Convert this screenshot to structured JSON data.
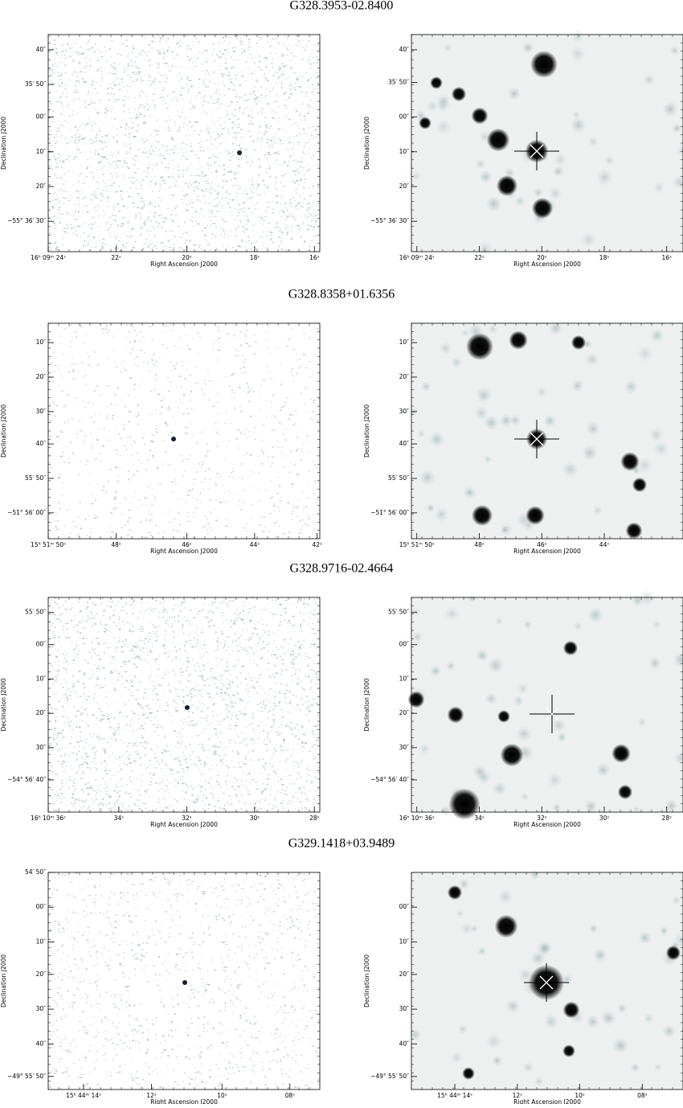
{
  "panels": [
    {
      "title": "G328.3953-02.8400",
      "left": {
        "yticks": [
          "40″",
          "35′ 50″",
          "00″",
          "10″",
          "20″",
          "−55° 36′ 30″"
        ],
        "xticks": [
          "16ʰ 09ᵐ 24ˢ",
          "22ˢ",
          "20ˢ",
          "18ˢ",
          "16ˢ"
        ],
        "ylabel": "Declination J2000",
        "xlabel": "Right Ascension J2000"
      },
      "right": {
        "yticks": [
          "40″",
          "35′ 50″",
          "00″",
          "10″",
          "20″",
          "−55° 36′ 30″"
        ],
        "xticks": [
          "16ʰ 09ᵐ 24ˢ",
          "22ˢ",
          "20ˢ",
          "18ˢ",
          "16ˢ"
        ],
        "ylabel": "Declination J2000",
        "xlabel": "Right Ascension J2000"
      }
    },
    {
      "title": "G328.8358+01.6356",
      "left": {
        "yticks": [
          "10″",
          "20″",
          "30″",
          "40″",
          "55′ 50″",
          "−51° 56′ 00″"
        ],
        "xticks": [
          "15ʰ 51ᵐ 50ˢ",
          "48ˢ",
          "46ˢ",
          "44ˢ",
          "42ˢ"
        ],
        "ylabel": "Declination J2000",
        "xlabel": "Right Ascension J2000"
      },
      "right": {
        "yticks": [
          "10″",
          "20″",
          "30″",
          "40″",
          "55′ 50″",
          "−51° 56′ 00″"
        ],
        "xticks": [
          "15ʰ 51ᵐ 50ˢ",
          "48ˢ",
          "46ˢ",
          "44ˢ"
        ],
        "ylabel": "Declination J2000",
        "xlabel": "Right Ascension J2000"
      }
    },
    {
      "title": "G328.9716-02.4664",
      "left": {
        "yticks": [
          "55′ 50″",
          "00″",
          "10″",
          "20″",
          "30″",
          "−54° 56′ 40″"
        ],
        "xticks": [
          "16ʰ 10ᵐ 36ˢ",
          "34ˢ",
          "32ˢ",
          "30ˢ",
          "28ˢ"
        ],
        "ylabel": "Declination J2000",
        "xlabel": "Right Ascension J2000"
      },
      "right": {
        "yticks": [
          "55′ 50″",
          "00″",
          "10″",
          "20″",
          "30″",
          "−54° 56′ 40″"
        ],
        "xticks": [
          "16ʰ 10ᵐ 36ˢ",
          "34ˢ",
          "32ˢ",
          "30ˢ",
          "28ˢ"
        ],
        "ylabel": "Declination J2000",
        "xlabel": "Right Ascension J2000"
      }
    },
    {
      "title": "G329.1418+03.9489",
      "left": {
        "yticks": [
          "54′ 50″",
          "00″",
          "10″",
          "20″",
          "30″",
          "40″",
          "−49° 55′ 50″"
        ],
        "xticks": [
          "15ʰ 44ᵐ 14ˢ",
          "12ˢ",
          "10ˢ",
          "08ˢ"
        ],
        "ylabel": "Declination J2000",
        "xlabel": "Right Ascension J2000"
      },
      "right": {
        "yticks": [
          "00″",
          "10″",
          "20″",
          "30″",
          "40″",
          "−49° 55′ 50″"
        ],
        "xticks": [
          "15ʰ 44ᵐ 14ˢ",
          "12ˢ",
          "10ˢ",
          "08ˢ"
        ],
        "ylabel": "Declination J2000",
        "xlabel": "Right Ascension J2000"
      }
    }
  ]
}
